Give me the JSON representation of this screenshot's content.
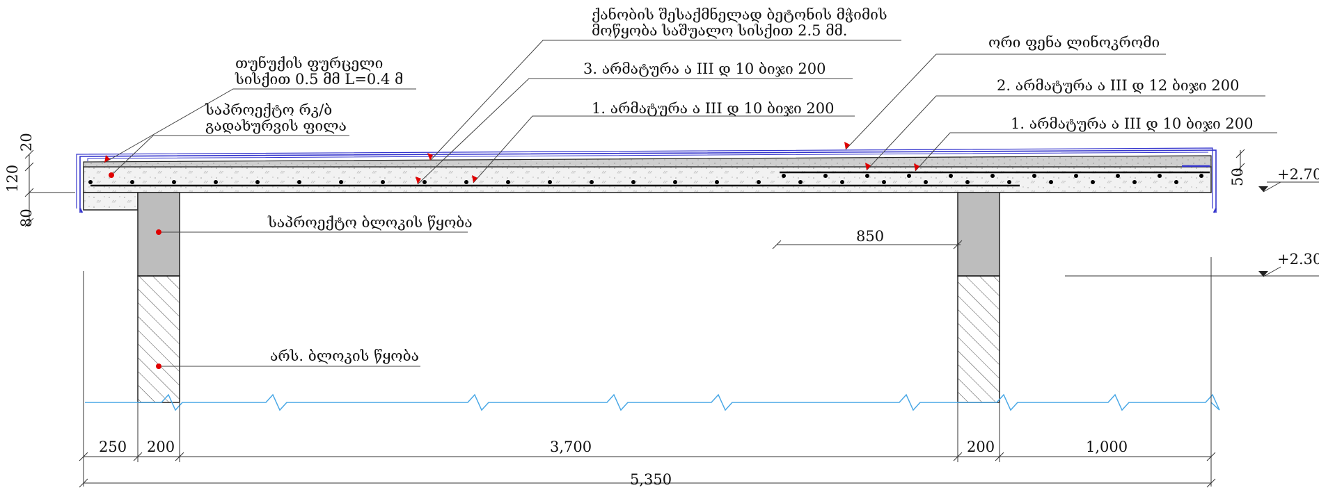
{
  "colors": {
    "membrane": "#3333cc",
    "ground": "#4aa8e6",
    "marker": "#e00000",
    "concrete": "#f0f0f0",
    "screed": "#c9c9c9",
    "beam": "#bdbdbd"
  },
  "labels": {
    "screed": [
      "ქანობის შესაქმნელად ბეტონის მჭიმის",
      "მოწყობა საშუალო სისქით 2.5 მმ."
    ],
    "rebar3": "3. არმატურა ა III დ 10 ბიჯი 200",
    "rebar1_left": "1. არმატურა ა III დ 10 ბიჯი 200",
    "tin": [
      "თუნუქის ფურცელი",
      "სისქით 0.5 მმ L=0.4 მ"
    ],
    "slab": [
      "საპროექტო რკ/ბ",
      "გადახურვის ფილა"
    ],
    "membrane": "ორი ფენა ლინოკრომი",
    "rebar2": "2. არმატურა ა III დ 12 ბიჯი 200",
    "rebar1_right": "1. არმატურა ა III დ 10 ბიჯი 200",
    "beam": "საპროექტო ბლოკის წყობა",
    "wall": "არს. ბლოკის წყობა"
  },
  "dims": {
    "h20": "20",
    "h120": "120",
    "h80": "80",
    "h50": "50",
    "d850": "850",
    "d250": "250",
    "d200a": "200",
    "d3700": "3,700",
    "d200b": "200",
    "d1000": "1,000",
    "d5350": "5,350"
  },
  "elevations": {
    "top": "+2.70",
    "bottom": "+2.30"
  }
}
